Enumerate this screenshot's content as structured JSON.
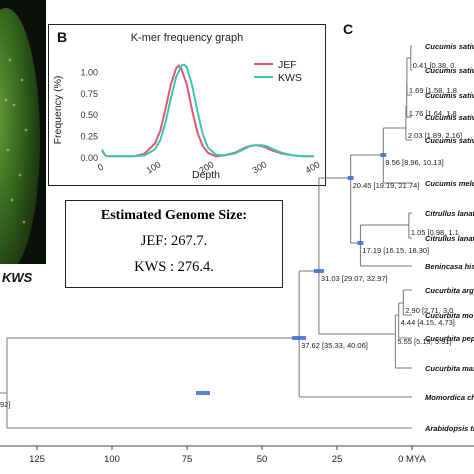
{
  "panel_b_label": "B",
  "panel_c_label": "C",
  "photo_tag": "KWS",
  "genome_box": {
    "title": "Estimated Genome Size:",
    "jef": "JEF: 267.7.",
    "kws": "KWS : 276.4."
  },
  "chart_data": [
    {
      "type": "line",
      "title": "K-mer frequency graph",
      "xlabel": "Depth",
      "ylabel": "Frequency (%)",
      "xlim": [
        0,
        400
      ],
      "ylim": [
        0,
        1.25
      ],
      "x_ticks": [
        "0",
        "100",
        "200",
        "300",
        "400"
      ],
      "y_ticks": [
        "0.00",
        "0.25",
        "0.50",
        "0.75",
        "1.00"
      ],
      "grid": false,
      "legend": "top-right",
      "colors": {
        "JEF": "#e15770",
        "KWS": "#3cc4b4"
      },
      "series": [
        {
          "name": "JEF",
          "x": [
            0,
            5,
            10,
            20,
            40,
            60,
            80,
            100,
            110,
            120,
            130,
            140,
            145,
            150,
            160,
            170,
            180,
            190,
            200,
            215,
            230,
            250,
            260,
            270,
            280,
            290,
            300,
            310,
            320,
            340,
            360,
            380,
            400
          ],
          "y": [
            0.09,
            0.04,
            0.02,
            0.02,
            0.02,
            0.02,
            0.05,
            0.17,
            0.32,
            0.58,
            0.86,
            1.05,
            1.08,
            1.04,
            0.86,
            0.56,
            0.3,
            0.14,
            0.06,
            0.02,
            0.03,
            0.06,
            0.09,
            0.12,
            0.14,
            0.15,
            0.14,
            0.12,
            0.09,
            0.05,
            0.03,
            0.02,
            0.02
          ]
        },
        {
          "name": "KWS",
          "x": [
            0,
            5,
            10,
            20,
            40,
            60,
            80,
            100,
            110,
            120,
            130,
            140,
            150,
            155,
            160,
            170,
            180,
            190,
            200,
            215,
            230,
            250,
            260,
            270,
            280,
            290,
            300,
            310,
            320,
            340,
            360,
            380,
            400
          ],
          "y": [
            0.1,
            0.04,
            0.02,
            0.02,
            0.02,
            0.02,
            0.03,
            0.1,
            0.21,
            0.42,
            0.7,
            0.95,
            1.08,
            1.09,
            1.06,
            0.85,
            0.55,
            0.28,
            0.12,
            0.04,
            0.03,
            0.05,
            0.08,
            0.11,
            0.14,
            0.15,
            0.15,
            0.14,
            0.11,
            0.06,
            0.03,
            0.02,
            0.02
          ]
        }
      ]
    },
    {
      "type": "phylogeny",
      "axis_ticks": [
        "125",
        "100",
        "75",
        "50",
        "25",
        "0 MYA"
      ],
      "axis_values": [
        125,
        100,
        75,
        50,
        25,
        0
      ],
      "xlim": [
        142,
        0
      ],
      "root_label_fragment": "92]",
      "tips": [
        "Cucumis sativ",
        "Cucumis sativ",
        "Cucumis sativ",
        "Cucumis sativ",
        "Cucumis sativ",
        "Cucumis melo",
        "Citrullus lanat",
        "Citrullus lanat",
        "Benincasa his",
        "Cucurbita argy",
        "Cucurbita mos",
        "Cucurbita pepo",
        "Cucurbita max",
        "Momordica ch",
        "Arabidopsis th"
      ],
      "nodes": [
        {
          "age": 0.41,
          "label": "0.41 [0.38, 0."
        },
        {
          "age": 1.69,
          "label": "1.69 [1.58, 1.8"
        },
        {
          "age": 1.76,
          "label": "1.76 [1.64, 1.8"
        },
        {
          "age": 2.03,
          "label": "2.03 [1.89, 2.16]"
        },
        {
          "age": 9.56,
          "label": "9.56 [8.96, 10.13]"
        },
        {
          "age": 20.45,
          "label": "20.45 [19.19, 21.74]"
        },
        {
          "age": 1.05,
          "label": "1.05 [0.98, 1.1"
        },
        {
          "age": 17.19,
          "label": "17.19 [16.15, 18.30]"
        },
        {
          "age": 31.03,
          "label": "31.03 [29.07, 32.97]"
        },
        {
          "age": 2.9,
          "label": "2.90 [2.71, 3.0"
        },
        {
          "age": 4.44,
          "label": "4.44 [4.15, 4.73]"
        },
        {
          "age": 5.55,
          "label": "5.55 [5.19, 5.91]"
        },
        {
          "age": 37.62,
          "label": "37.62 [35.33, 40.06]"
        }
      ]
    }
  ]
}
